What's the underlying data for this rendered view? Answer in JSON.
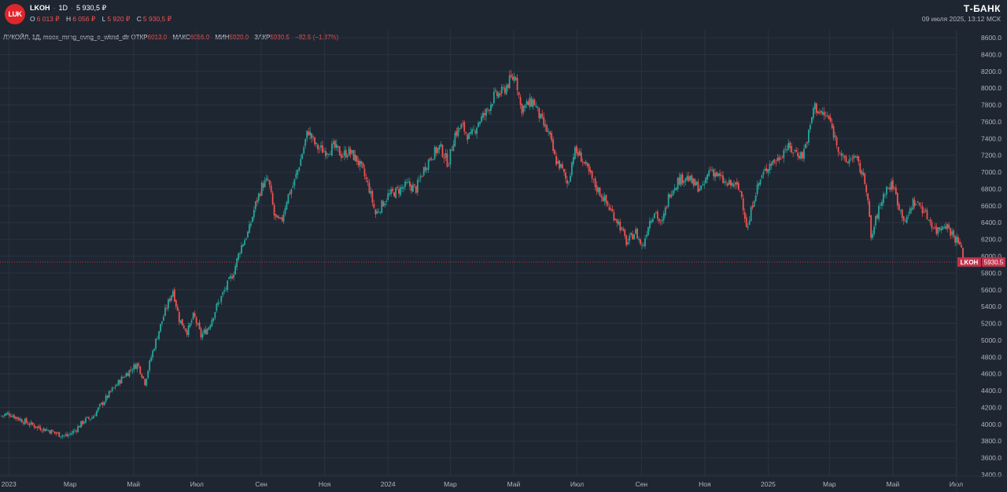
{
  "header": {
    "logo_text": "LUK",
    "symbol": "LKOH",
    "interval": "1D",
    "last_price": "5 930,5 ₽",
    "ohlc": [
      {
        "key": "O",
        "value": "6 013 ₽"
      },
      {
        "key": "H",
        "value": "6 056 ₽"
      },
      {
        "key": "L",
        "value": "5 920 ₽"
      },
      {
        "key": "C",
        "value": "5 930,5 ₽"
      }
    ],
    "brand": "Т-БАНК",
    "datetime": "09 июля 2025, 13:12 МСК"
  },
  "study": {
    "name": "ЛУКОЙЛ, 1Д, moex_mrng_evng_e_wknd_dlr",
    "open_label": "ОТКР",
    "open_value": "6013.0",
    "high_label": "МАКС",
    "high_value": "6056.0",
    "low_label": "МИН",
    "low_value": "5920.0",
    "close_label": "ЗАКР",
    "close_value": "5930.5",
    "change": "−82.5 (−1.37%)"
  },
  "chart_data": {
    "type": "candlestick",
    "y_ticks": [
      "3400.0",
      "3600.0",
      "3800.0",
      "4000.0",
      "4200.0",
      "4400.0",
      "4600.0",
      "4800.0",
      "5000.0",
      "5200.0",
      "5400.0",
      "5600.0",
      "5800.0",
      "6000.0",
      "6200.0",
      "6400.0",
      "6600.0",
      "6800.0",
      "7000.0",
      "7200.0",
      "7400.0",
      "7600.0",
      "7800.0",
      "8000.0",
      "8200.0",
      "8400.0",
      "8600.0"
    ],
    "ylim": [
      3400,
      8600
    ],
    "x_ticks": [
      "2023",
      "Мар",
      "Май",
      "Июл",
      "Сен",
      "Ноя",
      "2024",
      "Мар",
      "Май",
      "Июл",
      "Сен",
      "Ноя",
      "2025",
      "Мар",
      "Май",
      "Июл"
    ],
    "x_tick_dates": [
      "2023-01-01",
      "2023-03-01",
      "2023-05-01",
      "2023-07-01",
      "2023-09-01",
      "2023-11-01",
      "2024-01-01",
      "2024-03-01",
      "2024-05-01",
      "2024-07-01",
      "2024-09-01",
      "2024-11-01",
      "2025-01-01",
      "2025-03-01",
      "2025-05-01",
      "2025-07-01"
    ],
    "date_range": [
      "2022-12-25",
      "2025-07-09"
    ],
    "price_series": [
      [
        "2022-12-25",
        4100
      ],
      [
        "2023-01-01",
        4130
      ],
      [
        "2023-01-10",
        4070
      ],
      [
        "2023-01-20",
        4010
      ],
      [
        "2023-01-30",
        3960
      ],
      [
        "2023-02-08",
        3930
      ],
      [
        "2023-02-18",
        3880
      ],
      [
        "2023-02-26",
        3860
      ],
      [
        "2023-03-05",
        3920
      ],
      [
        "2023-03-15",
        4050
      ],
      [
        "2023-03-22",
        4080
      ],
      [
        "2023-04-01",
        4250
      ],
      [
        "2023-04-10",
        4400
      ],
      [
        "2023-04-20",
        4550
      ],
      [
        "2023-04-28",
        4650
      ],
      [
        "2023-05-05",
        4720
      ],
      [
        "2023-05-12",
        4500
      ],
      [
        "2023-05-18",
        4800
      ],
      [
        "2023-05-25",
        5100
      ],
      [
        "2023-06-02",
        5400
      ],
      [
        "2023-06-08",
        5600
      ],
      [
        "2023-06-14",
        5250
      ],
      [
        "2023-06-22",
        5100
      ],
      [
        "2023-06-28",
        5300
      ],
      [
        "2023-07-05",
        5050
      ],
      [
        "2023-07-12",
        5150
      ],
      [
        "2023-07-20",
        5400
      ],
      [
        "2023-07-28",
        5600
      ],
      [
        "2023-08-05",
        5800
      ],
      [
        "2023-08-12",
        6100
      ],
      [
        "2023-08-20",
        6300
      ],
      [
        "2023-08-26",
        6600
      ],
      [
        "2023-09-02",
        6850
      ],
      [
        "2023-09-08",
        6900
      ],
      [
        "2023-09-14",
        6450
      ],
      [
        "2023-09-20",
        6400
      ],
      [
        "2023-09-26",
        6700
      ],
      [
        "2023-10-02",
        6850
      ],
      [
        "2023-10-10",
        7200
      ],
      [
        "2023-10-16",
        7500
      ],
      [
        "2023-10-24",
        7300
      ],
      [
        "2023-11-01",
        7250
      ],
      [
        "2023-11-10",
        7300
      ],
      [
        "2023-11-18",
        7200
      ],
      [
        "2023-11-24",
        7250
      ],
      [
        "2023-12-02",
        7150
      ],
      [
        "2023-12-08",
        7000
      ],
      [
        "2023-12-14",
        6800
      ],
      [
        "2023-12-20",
        6500
      ],
      [
        "2024-01-01",
        6720
      ],
      [
        "2024-01-10",
        6780
      ],
      [
        "2024-01-20",
        6850
      ],
      [
        "2024-01-28",
        6800
      ],
      [
        "2024-02-05",
        7050
      ],
      [
        "2024-02-12",
        7200
      ],
      [
        "2024-02-20",
        7300
      ],
      [
        "2024-02-28",
        7100
      ],
      [
        "2024-03-05",
        7450
      ],
      [
        "2024-03-12",
        7550
      ],
      [
        "2024-03-20",
        7400
      ],
      [
        "2024-03-28",
        7600
      ],
      [
        "2024-04-04",
        7700
      ],
      [
        "2024-04-12",
        7900
      ],
      [
        "2024-04-20",
        7950
      ],
      [
        "2024-04-28",
        8100
      ],
      [
        "2024-05-03",
        8150
      ],
      [
        "2024-05-08",
        7750
      ],
      [
        "2024-05-14",
        7800
      ],
      [
        "2024-05-20",
        7850
      ],
      [
        "2024-05-28",
        7600
      ],
      [
        "2024-06-04",
        7450
      ],
      [
        "2024-06-10",
        7150
      ],
      [
        "2024-06-16",
        7050
      ],
      [
        "2024-06-22",
        6850
      ],
      [
        "2024-06-28",
        7250
      ],
      [
        "2024-07-04",
        7200
      ],
      [
        "2024-07-10",
        7050
      ],
      [
        "2024-07-18",
        6850
      ],
      [
        "2024-07-26",
        6700
      ],
      [
        "2024-08-02",
        6550
      ],
      [
        "2024-08-10",
        6400
      ],
      [
        "2024-08-18",
        6150
      ],
      [
        "2024-08-26",
        6300
      ],
      [
        "2024-09-02",
        6100
      ],
      [
        "2024-09-08",
        6400
      ],
      [
        "2024-09-14",
        6550
      ],
      [
        "2024-09-20",
        6350
      ],
      [
        "2024-09-28",
        6750
      ],
      [
        "2024-10-06",
        6900
      ],
      [
        "2024-10-14",
        6950
      ],
      [
        "2024-10-22",
        6850
      ],
      [
        "2024-10-30",
        6800
      ],
      [
        "2024-11-06",
        7050
      ],
      [
        "2024-11-14",
        6950
      ],
      [
        "2024-11-22",
        6850
      ],
      [
        "2024-11-30",
        6850
      ],
      [
        "2024-12-06",
        6750
      ],
      [
        "2024-12-12",
        6300
      ],
      [
        "2024-12-18",
        6700
      ],
      [
        "2024-12-24",
        6900
      ],
      [
        "2025-01-02",
        7100
      ],
      [
        "2025-01-10",
        7150
      ],
      [
        "2025-01-18",
        7300
      ],
      [
        "2025-01-26",
        7250
      ],
      [
        "2025-02-03",
        7200
      ],
      [
        "2025-02-10",
        7500
      ],
      [
        "2025-02-14",
        7800
      ],
      [
        "2025-02-20",
        7700
      ],
      [
        "2025-02-28",
        7650
      ],
      [
        "2025-03-08",
        7350
      ],
      [
        "2025-03-16",
        7100
      ],
      [
        "2025-03-24",
        7200
      ],
      [
        "2025-04-01",
        7000
      ],
      [
        "2025-04-06",
        6800
      ],
      [
        "2025-04-10",
        6200
      ],
      [
        "2025-04-16",
        6500
      ],
      [
        "2025-04-24",
        6800
      ],
      [
        "2025-05-01",
        6850
      ],
      [
        "2025-05-08",
        6550
      ],
      [
        "2025-05-14",
        6400
      ],
      [
        "2025-05-20",
        6650
      ],
      [
        "2025-05-28",
        6600
      ],
      [
        "2025-06-04",
        6450
      ],
      [
        "2025-06-12",
        6300
      ],
      [
        "2025-06-20",
        6400
      ],
      [
        "2025-06-28",
        6250
      ],
      [
        "2025-07-04",
        6150
      ],
      [
        "2025-07-09",
        5930.5
      ]
    ],
    "last_price": "5930.5",
    "colors": {
      "up": "#26a69a",
      "down": "#ef5350",
      "tag": "#c2334c"
    },
    "grid": true
  }
}
